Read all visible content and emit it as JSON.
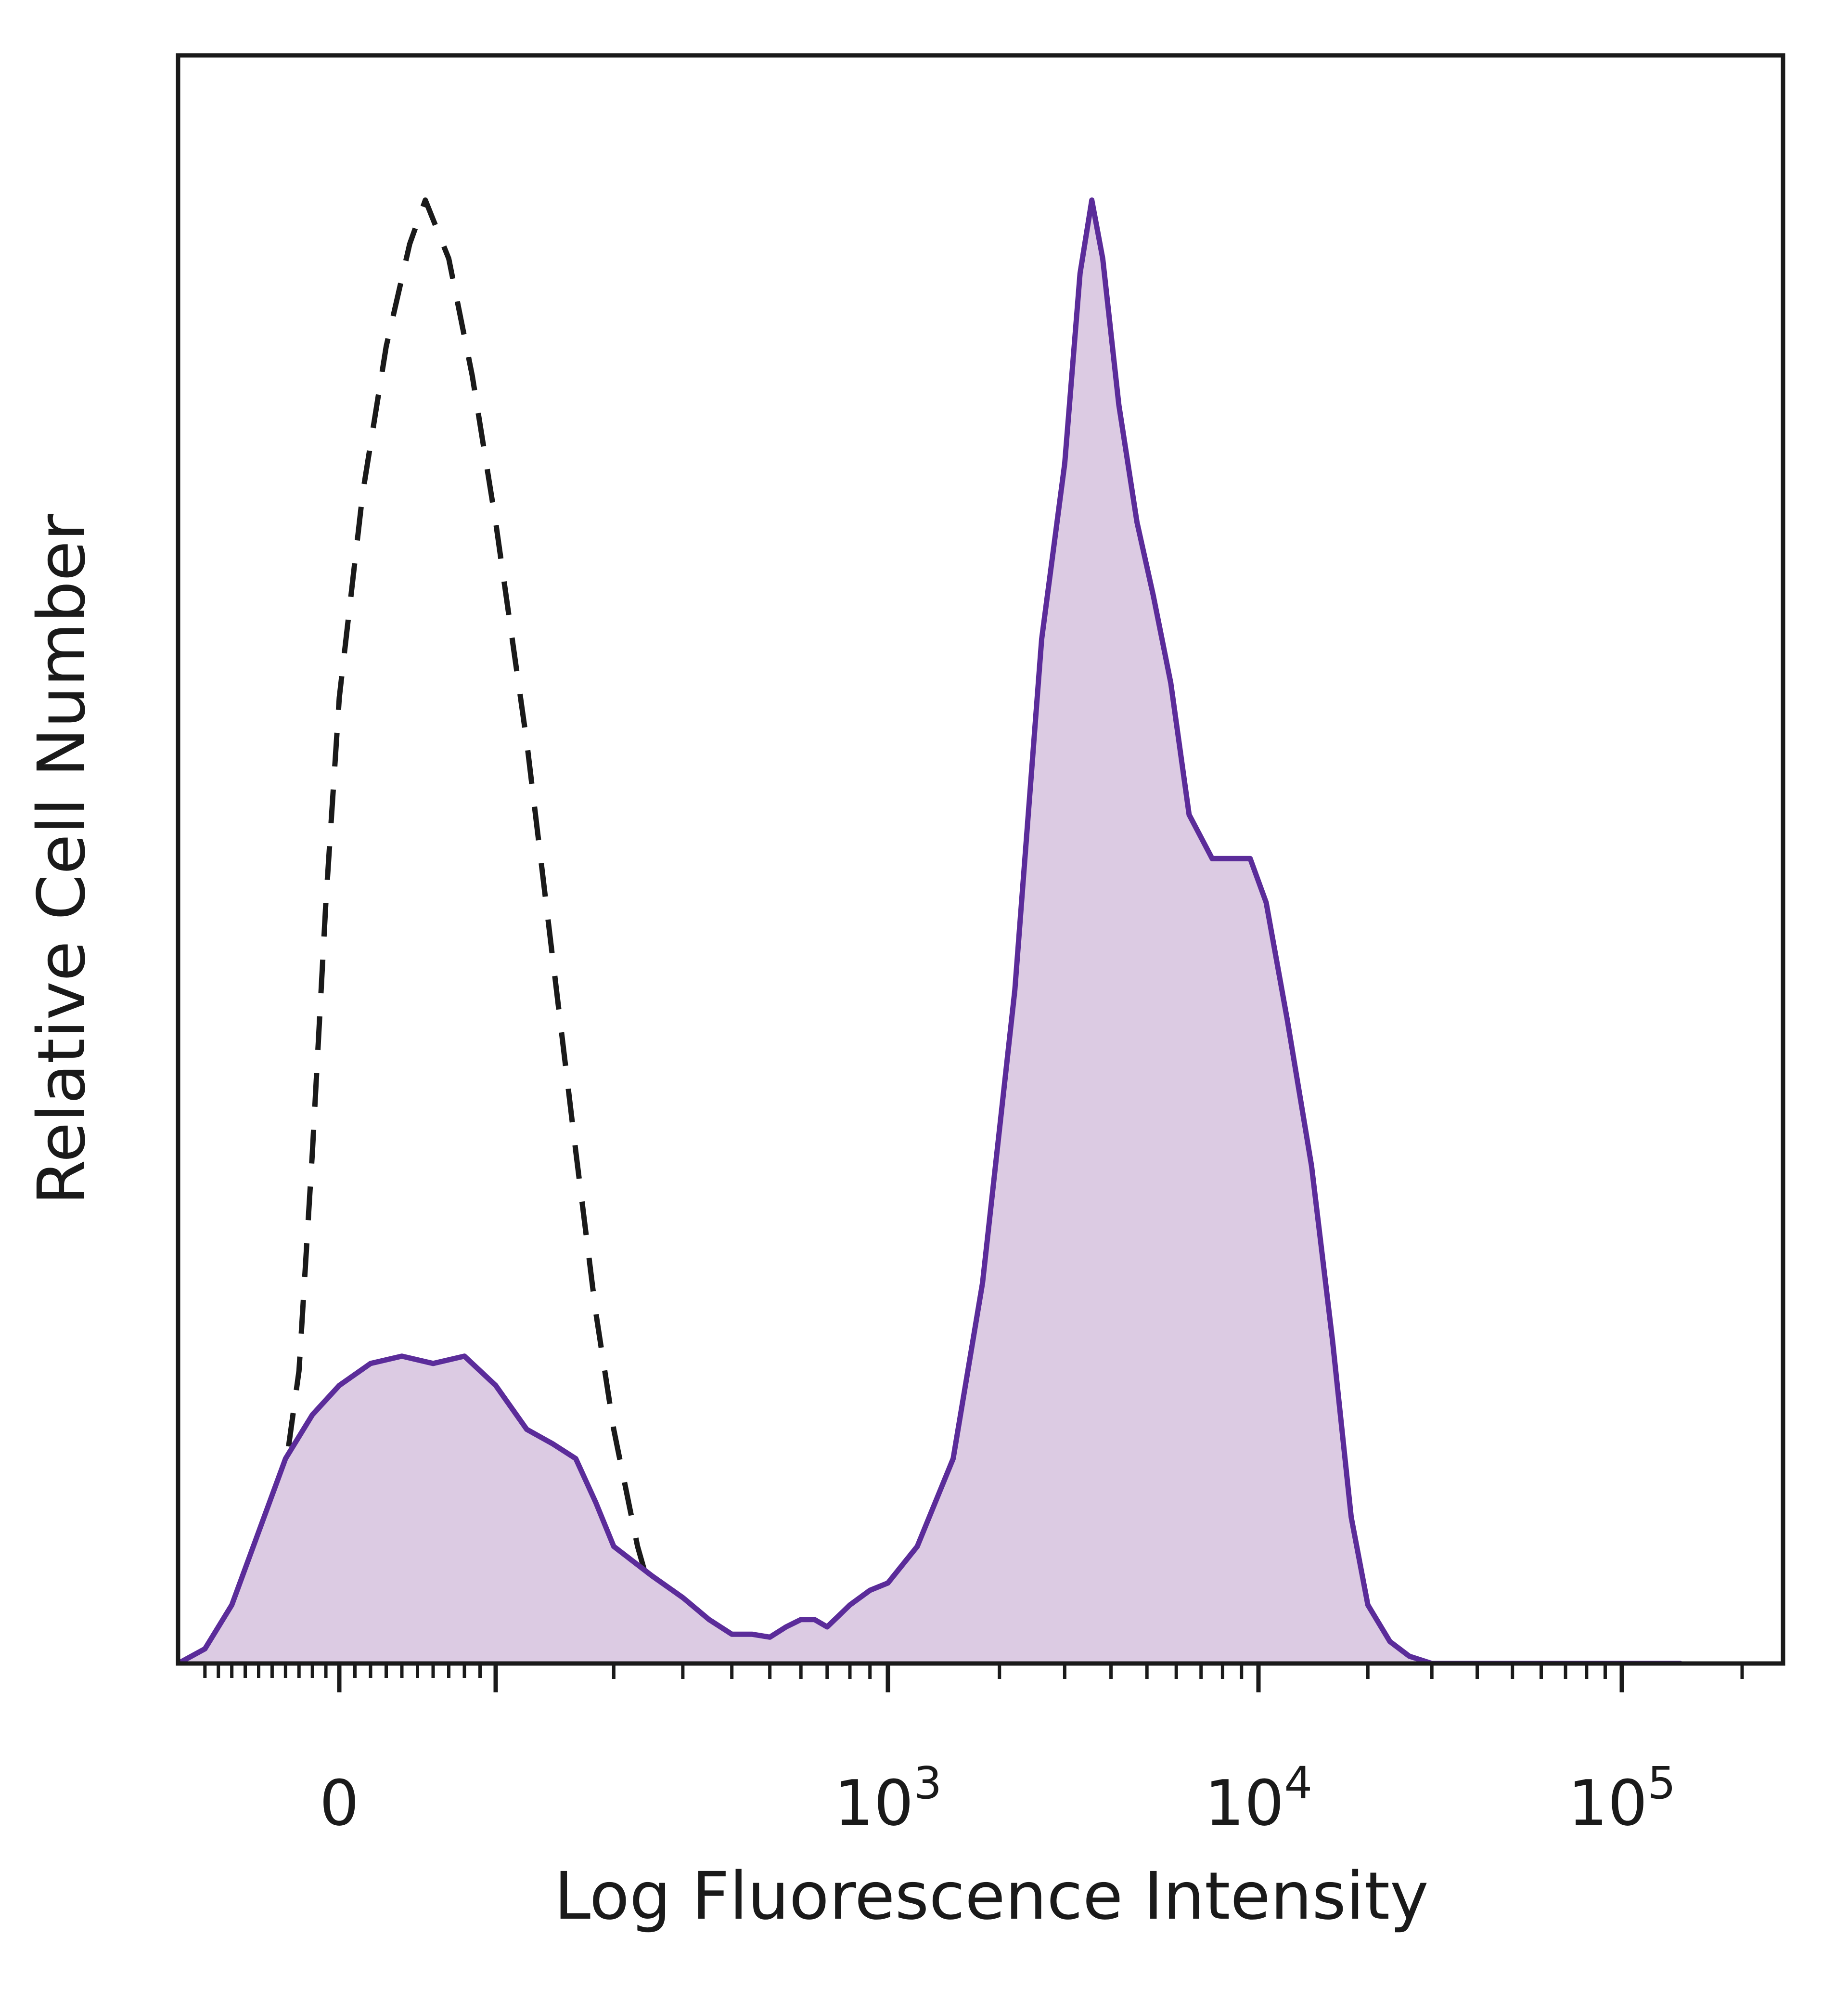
{
  "chart_data": {
    "type": "area",
    "title": "",
    "xlabel": "Log Fluorescence Intensity",
    "ylabel": "Relative Cell Number",
    "x_scale": "biexponential",
    "xlim": [
      -120,
      200000
    ],
    "ylim": [
      0,
      100
    ],
    "grid": false,
    "legend": "none",
    "x_ticks": [
      {
        "value": 0,
        "label": "0",
        "base": "",
        "exponent": ""
      },
      {
        "value": 1000,
        "label": "10^3",
        "base": "10",
        "exponent": "3"
      },
      {
        "value": 10000,
        "label": "10^4",
        "base": "10",
        "exponent": "4"
      },
      {
        "value": 100000,
        "label": "10^5",
        "base": "10",
        "exponent": "5"
      }
    ],
    "series": [
      {
        "style": "dashed",
        "color": "#1a1a1a",
        "fill": "none",
        "points": [
          [
            -80,
            0
          ],
          [
            -60,
            3
          ],
          [
            -45,
            10
          ],
          [
            -30,
            20
          ],
          [
            -20,
            35
          ],
          [
            -10,
            52
          ],
          [
            0,
            66
          ],
          [
            15,
            80
          ],
          [
            30,
            90
          ],
          [
            45,
            97
          ],
          [
            55,
            100
          ],
          [
            70,
            96
          ],
          [
            85,
            88
          ],
          [
            100,
            78
          ],
          [
            120,
            63
          ],
          [
            140,
            48
          ],
          [
            160,
            35
          ],
          [
            180,
            24
          ],
          [
            200,
            16
          ],
          [
            230,
            8
          ],
          [
            260,
            3
          ],
          [
            300,
            1
          ],
          [
            350,
            0
          ]
        ]
      },
      {
        "style": "solid",
        "color": "#5b2c9a",
        "fill": "#dccbe3",
        "points": [
          [
            -120,
            0
          ],
          [
            -100,
            1
          ],
          [
            -80,
            4
          ],
          [
            -60,
            9
          ],
          [
            -40,
            14
          ],
          [
            -20,
            17
          ],
          [
            0,
            19
          ],
          [
            20,
            20.5
          ],
          [
            40,
            21
          ],
          [
            60,
            20.5
          ],
          [
            80,
            21
          ],
          [
            100,
            19
          ],
          [
            120,
            16
          ],
          [
            140,
            15
          ],
          [
            160,
            14
          ],
          [
            180,
            11
          ],
          [
            200,
            8
          ],
          [
            250,
            6
          ],
          [
            300,
            4.5
          ],
          [
            350,
            3
          ],
          [
            400,
            2
          ],
          [
            450,
            2
          ],
          [
            500,
            1.8
          ],
          [
            550,
            2.5
          ],
          [
            600,
            3
          ],
          [
            650,
            3
          ],
          [
            700,
            2.5
          ],
          [
            800,
            4
          ],
          [
            900,
            5
          ],
          [
            1000,
            5.5
          ],
          [
            1200,
            8
          ],
          [
            1500,
            14
          ],
          [
            1800,
            26
          ],
          [
            2200,
            46
          ],
          [
            2600,
            70
          ],
          [
            3000,
            82
          ],
          [
            3300,
            95
          ],
          [
            3550,
            100
          ],
          [
            3800,
            96
          ],
          [
            4200,
            86
          ],
          [
            4700,
            78
          ],
          [
            5200,
            73
          ],
          [
            5800,
            67
          ],
          [
            6500,
            58
          ],
          [
            7500,
            55
          ],
          [
            8500,
            55
          ],
          [
            9500,
            55
          ],
          [
            10500,
            52
          ],
          [
            12000,
            44
          ],
          [
            14000,
            34
          ],
          [
            16000,
            22
          ],
          [
            18000,
            10
          ],
          [
            20000,
            4
          ],
          [
            23000,
            1.5
          ],
          [
            26000,
            0.5
          ],
          [
            30000,
            0
          ],
          [
            60000,
            0
          ],
          [
            100000,
            0
          ],
          [
            140000,
            0
          ]
        ]
      }
    ]
  }
}
